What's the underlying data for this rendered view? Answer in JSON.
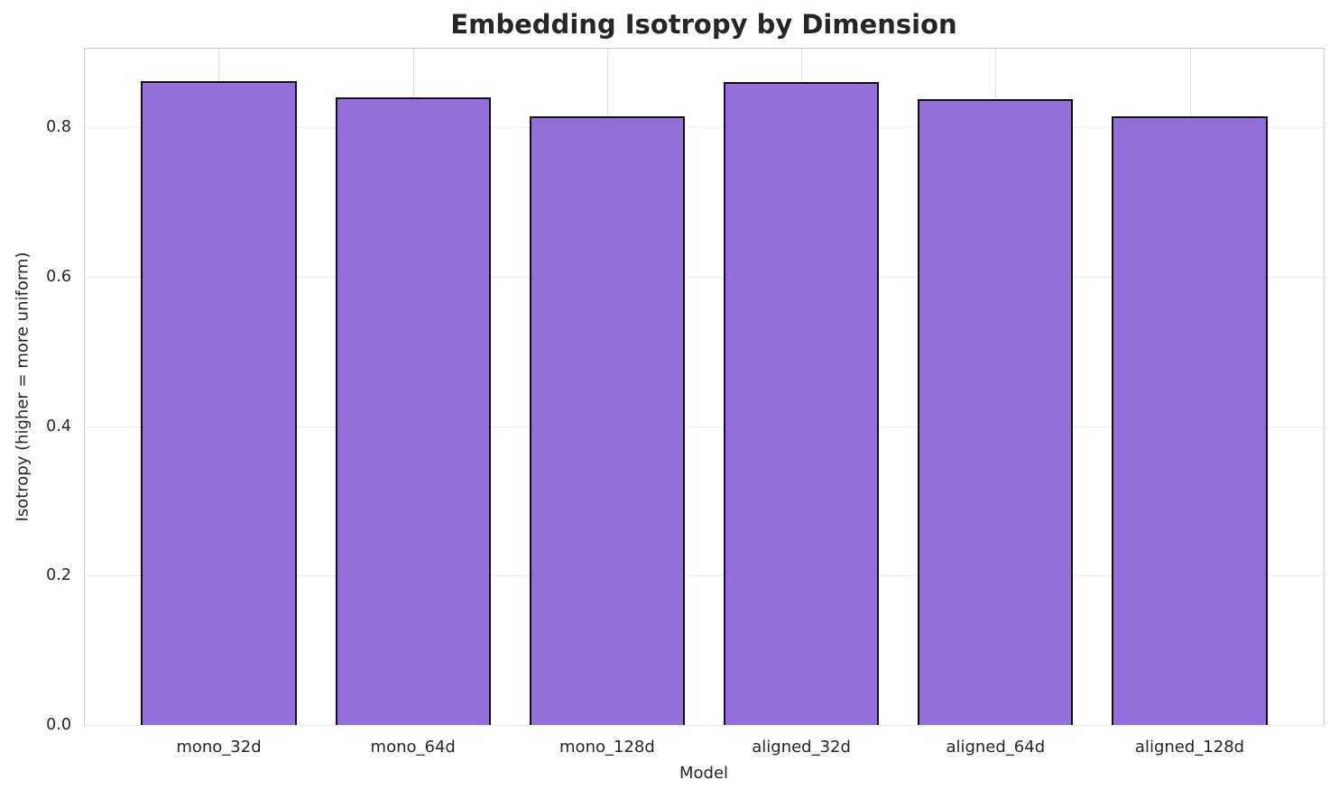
{
  "chart_data": {
    "type": "bar",
    "title": "Embedding Isotropy by Dimension",
    "xlabel": "Model",
    "ylabel": "Isotropy (higher = more uniform)",
    "categories": [
      "mono_32d",
      "mono_64d",
      "mono_128d",
      "aligned_32d",
      "aligned_64d",
      "aligned_128d"
    ],
    "values": [
      0.862,
      0.84,
      0.815,
      0.86,
      0.838,
      0.814
    ],
    "ylim": [
      0,
      0.905
    ],
    "yticks": [
      0.0,
      0.2,
      0.4,
      0.6,
      0.8
    ],
    "bar_color": "#9370DB",
    "bar_edge_color": "#111111",
    "grid": true,
    "legend": "none"
  }
}
